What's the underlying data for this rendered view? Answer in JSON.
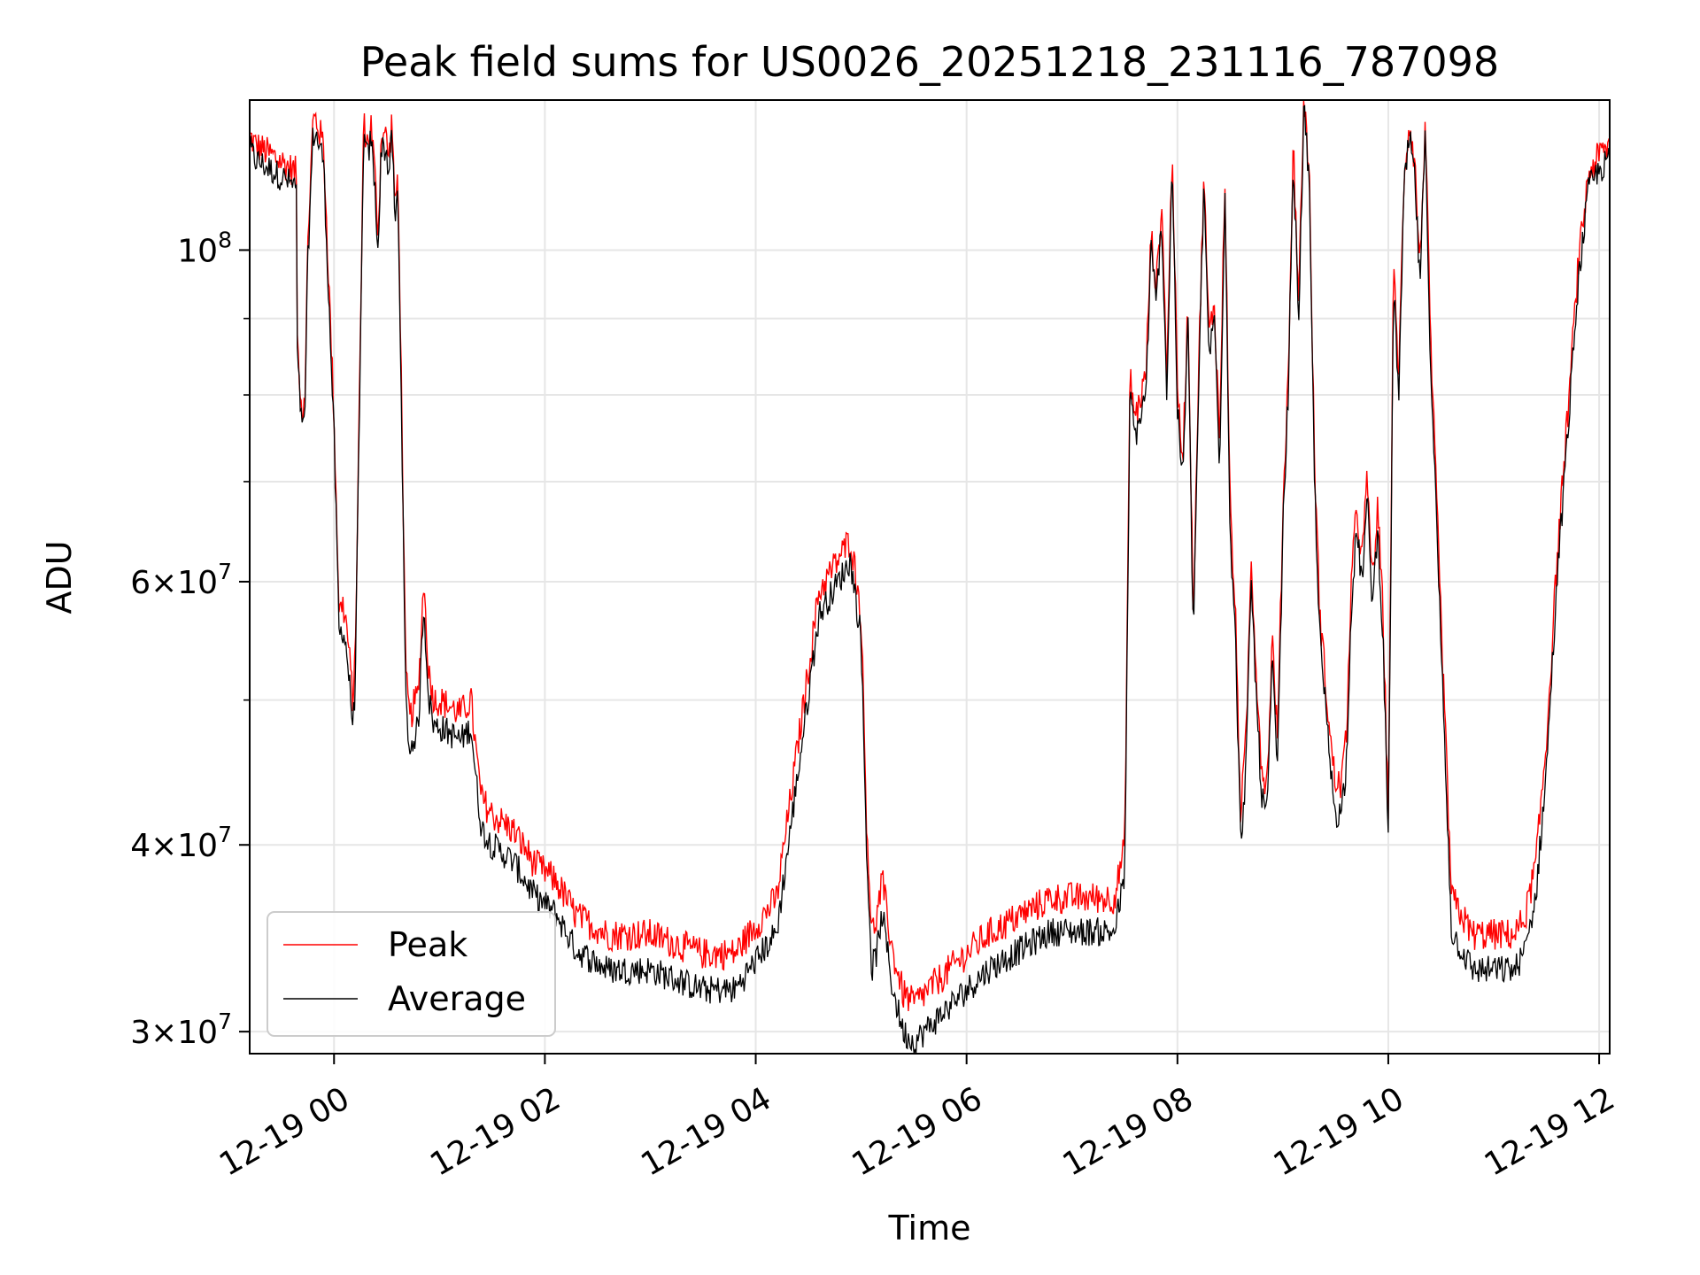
{
  "chart_data": {
    "type": "line",
    "title": "Peak field sums for US0026_20251218_231116_787098",
    "xlabel": "Time",
    "ylabel": "ADU",
    "yscale": "log",
    "ylim": [
      29000000,
      126000000
    ],
    "xlim_hours": [
      -0.8,
      12.1
    ],
    "grid": true,
    "legend_position": "lower-left",
    "x_ticks": [
      {
        "label": "12-19 00",
        "hour": 0
      },
      {
        "label": "12-19 02",
        "hour": 2
      },
      {
        "label": "12-19 04",
        "hour": 4
      },
      {
        "label": "12-19 06",
        "hour": 6
      },
      {
        "label": "12-19 08",
        "hour": 8
      },
      {
        "label": "12-19 10",
        "hour": 10
      },
      {
        "label": "12-19 12",
        "hour": 12
      }
    ],
    "y_major_ticks": [
      {
        "value": 30000000,
        "mantissa": "3",
        "exponent": "7"
      },
      {
        "value": 40000000,
        "mantissa": "4",
        "exponent": "7"
      },
      {
        "value": 60000000,
        "mantissa": "6",
        "exponent": "7"
      },
      {
        "value": 100000000,
        "mantissa": "",
        "exponent": "8"
      }
    ],
    "y_minor_ticks": [
      50000000,
      70000000,
      80000000,
      90000000
    ],
    "series": [
      {
        "name": "Peak",
        "color": "#ff0000"
      },
      {
        "name": "Average",
        "color": "#000000"
      }
    ],
    "x_hours": [
      -0.8,
      -0.75,
      -0.5,
      -0.35,
      -0.35,
      -0.3,
      -0.27,
      -0.25,
      -0.2,
      -0.18,
      -0.1,
      0,
      0.05,
      0.08,
      0.12,
      0.18,
      0.2,
      0.25,
      0.28,
      0.32,
      0.35,
      0.38,
      0.42,
      0.45,
      0.5,
      0.52,
      0.55,
      0.58,
      0.6,
      0.62,
      0.65,
      0.68,
      0.72,
      0.75,
      0.8,
      0.85,
      0.9,
      0.95,
      1.0,
      1.2,
      1.3,
      1.35,
      1.4,
      1.5,
      1.7,
      1.9,
      2.1,
      2.3,
      2.6,
      3.0,
      3.5,
      3.8,
      4.2,
      4.6,
      4.9,
      5.0,
      5.05,
      5.1,
      5.15,
      5.2,
      5.3,
      5.4,
      5.5,
      5.6,
      5.8,
      6.0,
      6.2,
      6.5,
      6.8,
      7.0,
      7.2,
      7.4,
      7.5,
      7.55,
      7.6,
      7.7,
      7.75,
      7.8,
      7.85,
      7.9,
      7.95,
      8.0,
      8.05,
      8.1,
      8.15,
      8.2,
      8.25,
      8.3,
      8.35,
      8.4,
      8.45,
      8.5,
      8.55,
      8.6,
      8.65,
      8.7,
      8.75,
      8.8,
      8.85,
      8.9,
      8.95,
      9.0,
      9.05,
      9.1,
      9.15,
      9.2,
      9.25,
      9.3,
      9.35,
      9.4,
      9.45,
      9.5,
      9.55,
      9.6,
      9.65,
      9.7,
      9.75,
      9.8,
      9.85,
      9.9,
      9.95,
      10.0,
      10.05,
      10.1,
      10.15,
      10.2,
      10.25,
      10.3,
      10.35,
      10.4,
      10.6,
      10.8,
      11.0,
      11.2,
      11.3,
      11.4,
      11.5,
      11.6,
      11.7,
      11.8,
      11.9,
      12.0,
      12.1
    ],
    "avg_values": [
      117000000,
      115000000,
      112000000,
      110000000,
      85000000,
      75000000,
      80000000,
      98000000,
      119000000,
      120000000,
      115000000,
      75000000,
      55000000,
      56000000,
      54000000,
      48000000,
      51000000,
      85000000,
      119000000,
      115000000,
      119000000,
      112000000,
      100000000,
      118000000,
      116000000,
      112000000,
      120000000,
      103000000,
      110000000,
      96000000,
      70000000,
      50000000,
      46000000,
      47000000,
      48000000,
      58000000,
      50000000,
      48000000,
      48000000,
      47000000,
      48000000,
      44000000,
      41000000,
      40000000,
      39000000,
      37000000,
      36000000,
      34000000,
      33000000,
      33000000,
      32000000,
      32000000,
      35000000,
      57000000,
      62000000,
      55000000,
      40000000,
      33000000,
      34000000,
      36000000,
      32000000,
      30000000,
      29500000,
      30000000,
      31000000,
      32000000,
      33000000,
      34000000,
      35000000,
      35000000,
      35000000,
      35000000,
      38000000,
      80000000,
      75000000,
      80000000,
      100000000,
      92000000,
      105000000,
      80000000,
      115000000,
      78000000,
      70000000,
      90000000,
      55000000,
      80000000,
      110000000,
      85000000,
      90000000,
      72000000,
      110000000,
      65000000,
      55000000,
      40000000,
      45000000,
      60000000,
      50000000,
      43000000,
      42000000,
      53000000,
      45000000,
      65000000,
      80000000,
      115000000,
      90000000,
      125000000,
      110000000,
      70000000,
      55000000,
      50000000,
      45000000,
      42000000,
      42000000,
      45000000,
      58000000,
      65000000,
      60000000,
      68000000,
      58000000,
      65000000,
      55000000,
      40000000,
      95000000,
      80000000,
      110000000,
      119000000,
      112000000,
      95000000,
      119000000,
      85000000,
      35000000,
      33000000,
      33000000,
      33000000,
      34000000,
      37000000,
      45000000,
      60000000,
      75000000,
      95000000,
      110000000,
      113000000,
      115000000,
      118000000,
      119000000
    ],
    "peak_values": [
      118000000,
      116500000,
      113500000,
      111500000,
      86500000,
      76500000,
      81500000,
      99500000,
      120500000,
      121500000,
      116500000,
      76500000,
      56500000,
      57500000,
      55500000,
      49500000,
      52500000,
      86500000,
      120500000,
      116500000,
      120500000,
      113500000,
      101500000,
      119500000,
      117500000,
      113500000,
      121500000,
      104500000,
      111500000,
      97500000,
      71500000,
      51500000,
      48000000,
      49000000,
      50000000,
      59500000,
      51500000,
      49500000,
      49500000,
      48500000,
      49500000,
      45500000,
      42500000,
      41500000,
      40500000,
      38500000,
      37500000,
      35500000,
      34500000,
      34500000,
      33500000,
      33500000,
      36500000,
      58500000,
      63500000,
      56500000,
      41500000,
      34500000,
      35500000,
      37500000,
      33500000,
      31500000,
      31000000,
      31500000,
      32500000,
      33500000,
      34500000,
      35500000,
      36500000,
      36500000,
      36500000,
      36500000,
      39500000,
      81500000,
      76500000,
      81500000,
      101500000,
      93500000,
      106500000,
      81500000,
      116500000,
      79500000,
      71500000,
      91500000,
      56500000,
      81500000,
      111500000,
      86500000,
      91500000,
      73500000,
      111500000,
      66500000,
      56500000,
      41500000,
      46500000,
      61500000,
      51500000,
      44500000,
      43500000,
      54500000,
      46500000,
      66500000,
      81500000,
      116500000,
      91500000,
      126000000,
      111500000,
      71500000,
      56500000,
      51500000,
      46500000,
      43500000,
      43500000,
      46500000,
      59500000,
      66500000,
      61500000,
      69500000,
      59500000,
      66500000,
      56500000,
      41500000,
      96500000,
      81500000,
      111500000,
      120500000,
      113500000,
      96500000,
      120500000,
      86500000,
      36500000,
      34500000,
      34500000,
      34500000,
      35500000,
      38500000,
      46500000,
      61500000,
      76500000,
      96500000,
      111500000,
      114500000,
      116500000,
      119500000,
      120500000
    ]
  }
}
